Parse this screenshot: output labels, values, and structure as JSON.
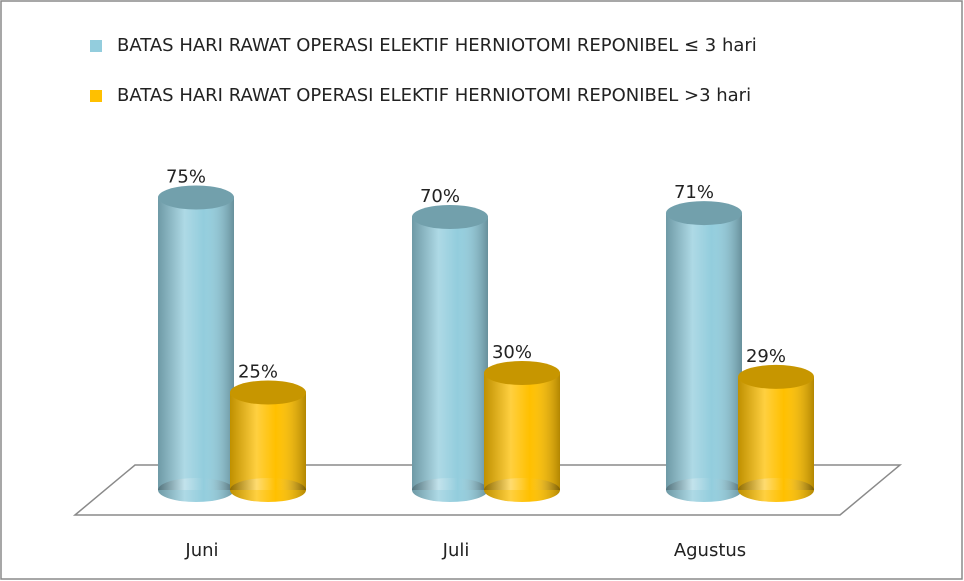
{
  "chart_data": {
    "type": "cylinder-bar",
    "categories": [
      "Juni",
      "Juli",
      "Agustus"
    ],
    "series": [
      {
        "name": "BATAS HARI RAWAT OPERASI ELEKTIF HERNIOTOMI REPONIBEL ≤ 3 hari",
        "color": "#93cddd",
        "values": [
          75,
          70,
          71
        ],
        "value_labels": [
          "75%",
          "70%",
          "71%"
        ]
      },
      {
        "name": "BATAS HARI RAWAT OPERASI ELEKTIF HERNIOTOMI REPONIBEL >3 hari",
        "color": "#ffc000",
        "values": [
          25,
          30,
          29
        ],
        "value_labels": [
          "25%",
          "30%",
          "29%"
        ]
      }
    ],
    "legend": "top"
  }
}
